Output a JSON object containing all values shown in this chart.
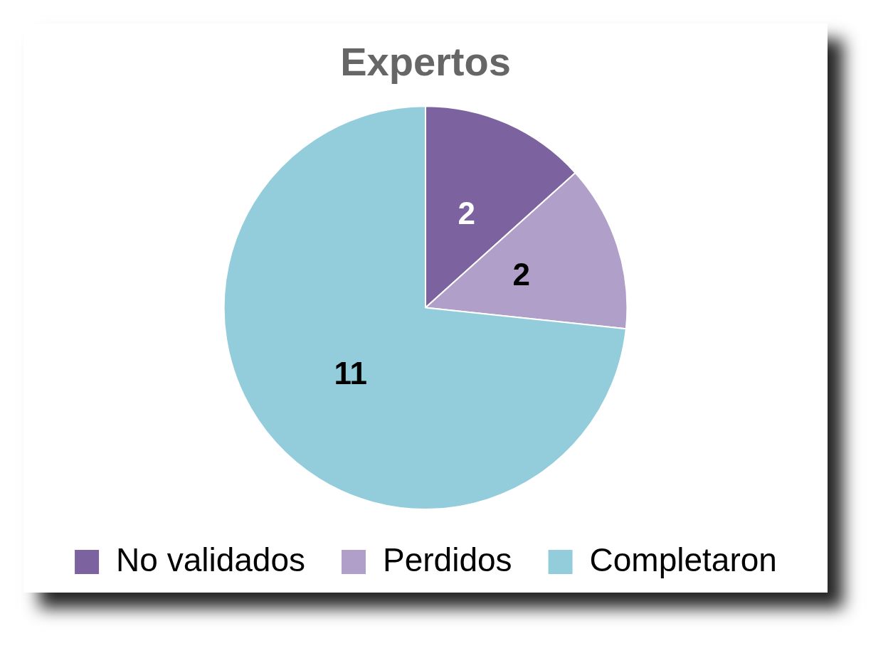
{
  "chart_data": {
    "type": "pie",
    "title": "Expertos",
    "categories": [
      "No validados",
      "Perdidos",
      "Completaron"
    ],
    "values": [
      2,
      2,
      11
    ],
    "colors": [
      "#7d62a0",
      "#b09fc8",
      "#93cddb"
    ],
    "data_labels": true,
    "legend": "bottom"
  }
}
